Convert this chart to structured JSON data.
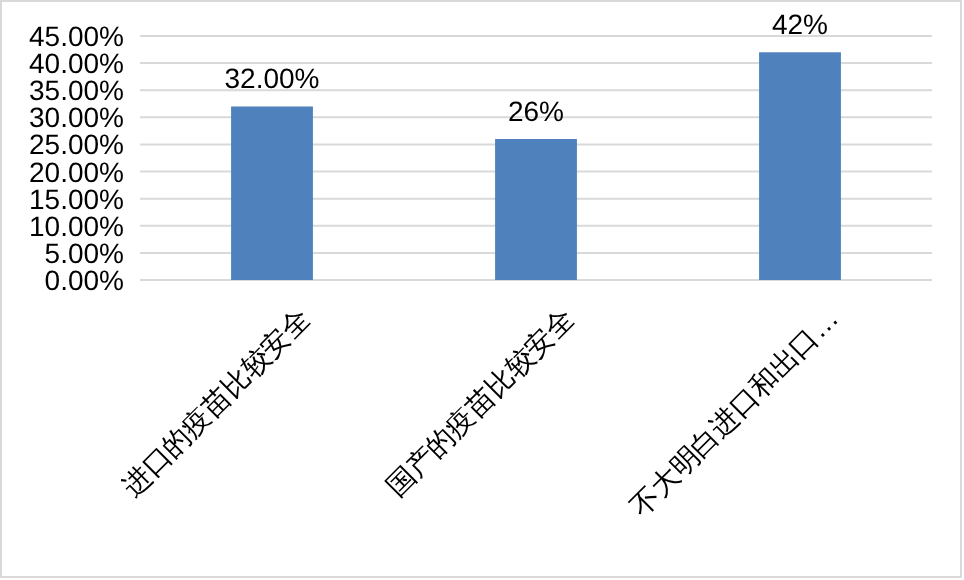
{
  "chart_data": {
    "type": "bar",
    "categories": [
      "进口的疫苗比较安全",
      "国产的疫苗比较安全",
      "不大明白进口和出口…"
    ],
    "values": [
      32,
      26,
      42
    ],
    "value_labels": [
      "32.00%",
      "26%",
      "42%"
    ],
    "color": "#4f81bd",
    "ylim": [
      0,
      45
    ],
    "yticks": [
      {
        "value": 0,
        "label": "0.00%"
      },
      {
        "value": 5,
        "label": "5.00%"
      },
      {
        "value": 10,
        "label": "10.00%"
      },
      {
        "value": 15,
        "label": "15.00%"
      },
      {
        "value": 20,
        "label": "20.00%"
      },
      {
        "value": 25,
        "label": "25.00%"
      },
      {
        "value": 30,
        "label": "30.00%"
      },
      {
        "value": 35,
        "label": "35.00%"
      },
      {
        "value": 40,
        "label": "40.00%"
      },
      {
        "value": 45,
        "label": "45.00%"
      }
    ],
    "grid": "y"
  }
}
